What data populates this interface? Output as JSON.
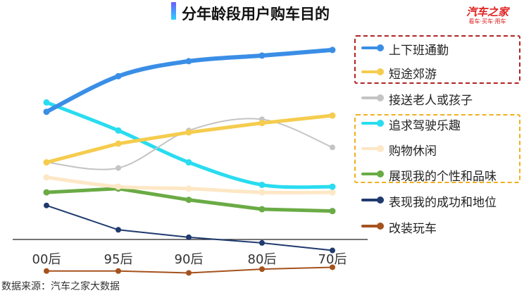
{
  "title": "分年龄段用户购车目的",
  "logo": {
    "name": "汽车之家",
    "slogan": "看车·买车·用车"
  },
  "source": "数据来源：汽车之家大数据",
  "colors": {
    "title_accent": "#3c8cff",
    "logo": "#e02020",
    "box_red": "#b22222",
    "box_gold": "#f0b020"
  },
  "chart_data": {
    "type": "line",
    "title": "分年龄段用户购车目的",
    "categories": [
      "00后",
      "95后",
      "90后",
      "80后",
      "70后"
    ],
    "xlabel": "",
    "ylabel": "",
    "y_axis_visible": false,
    "grid": false,
    "legend_position": "right",
    "series": [
      {
        "name": "上下班通勤",
        "color": "#3a8ee6",
        "width": 6,
        "smooth": true,
        "values": [
          0.55,
          0.74,
          0.82,
          0.85,
          0.88
        ]
      },
      {
        "name": "短途郊游",
        "color": "#f5cc4e",
        "width": 5,
        "smooth": false,
        "values": [
          0.28,
          0.38,
          0.44,
          0.49,
          0.53
        ]
      },
      {
        "name": "接送老人或孩子",
        "color": "#c4c4c4",
        "width": 2,
        "smooth": true,
        "values": [
          0.28,
          0.25,
          0.45,
          0.51,
          0.36
        ]
      },
      {
        "name": "追求驾驶乐趣",
        "color": "#29dcf0",
        "width": 5,
        "smooth": true,
        "values": [
          0.6,
          0.45,
          0.28,
          0.16,
          0.15
        ]
      },
      {
        "name": "购物休闲",
        "color": "#fde7c5",
        "width": 5,
        "smooth": true,
        "values": [
          0.2,
          0.15,
          0.14,
          0.12,
          0.12
        ]
      },
      {
        "name": "展现我的个性和品味",
        "color": "#6aab45",
        "width": 5,
        "smooth": false,
        "values": [
          0.12,
          0.14,
          0.08,
          0.03,
          0.02
        ]
      },
      {
        "name": "表现我的成功和地位",
        "color": "#1f3a6e",
        "width": 2,
        "smooth": false,
        "values": [
          0.05,
          -0.08,
          -0.12,
          -0.15,
          -0.19
        ]
      },
      {
        "name": "改装玩车",
        "color": "#a5521e",
        "width": 2,
        "smooth": false,
        "values": [
          -0.3,
          -0.3,
          -0.31,
          -0.29,
          -0.28
        ]
      }
    ],
    "groups": [
      {
        "color": "#b22222",
        "series": [
          "上下班通勤",
          "短途郊游"
        ]
      },
      {
        "color": "#f0b020",
        "series": [
          "追求驾驶乐趣",
          "购物休闲",
          "展现我的个性和品味"
        ]
      }
    ]
  }
}
